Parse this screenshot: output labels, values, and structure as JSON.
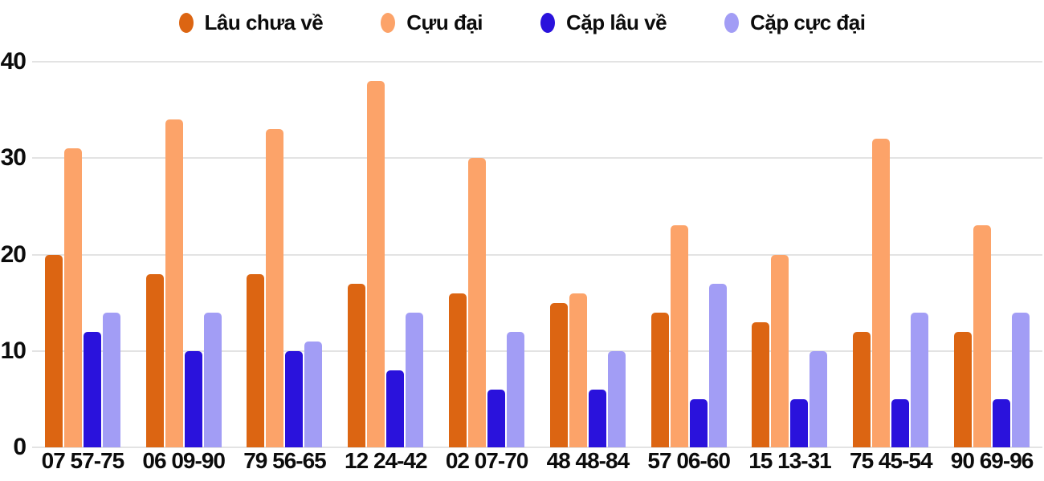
{
  "chart_data": {
    "type": "bar",
    "title": "",
    "xlabel": "",
    "ylabel": "",
    "categories": [
      "07 57-75",
      "06 09-90",
      "79 56-65",
      "12 24-42",
      "02 07-70",
      "48 48-84",
      "57 06-60",
      "15 13-31",
      "75 45-54",
      "90 69-96"
    ],
    "series": [
      {
        "name": "Lâu chưa về",
        "color": "#DC6512",
        "values": [
          20,
          18,
          18,
          17,
          16,
          15,
          14,
          13,
          12,
          12
        ]
      },
      {
        "name": "Cựu đại",
        "color": "#FCA369",
        "values": [
          31,
          34,
          33,
          38,
          30,
          16,
          23,
          20,
          32,
          23
        ]
      },
      {
        "name": "Cặp lâu về",
        "color": "#2A12DC",
        "values": [
          12,
          10,
          10,
          8,
          6,
          6,
          5,
          5,
          5,
          5
        ]
      },
      {
        "name": "Cặp cực đại",
        "color": "#A29DF5",
        "values": [
          14,
          14,
          11,
          14,
          12,
          10,
          17,
          10,
          14,
          14
        ]
      }
    ],
    "ylim": [
      0,
      40
    ],
    "yticks": [
      0,
      10,
      20,
      30,
      40
    ],
    "grid": "horizontal",
    "legend_position": "top-center"
  },
  "colors": {
    "background": "#FFFFFF",
    "gridline": "#E3E3E3",
    "text": "#0C0C0C"
  }
}
